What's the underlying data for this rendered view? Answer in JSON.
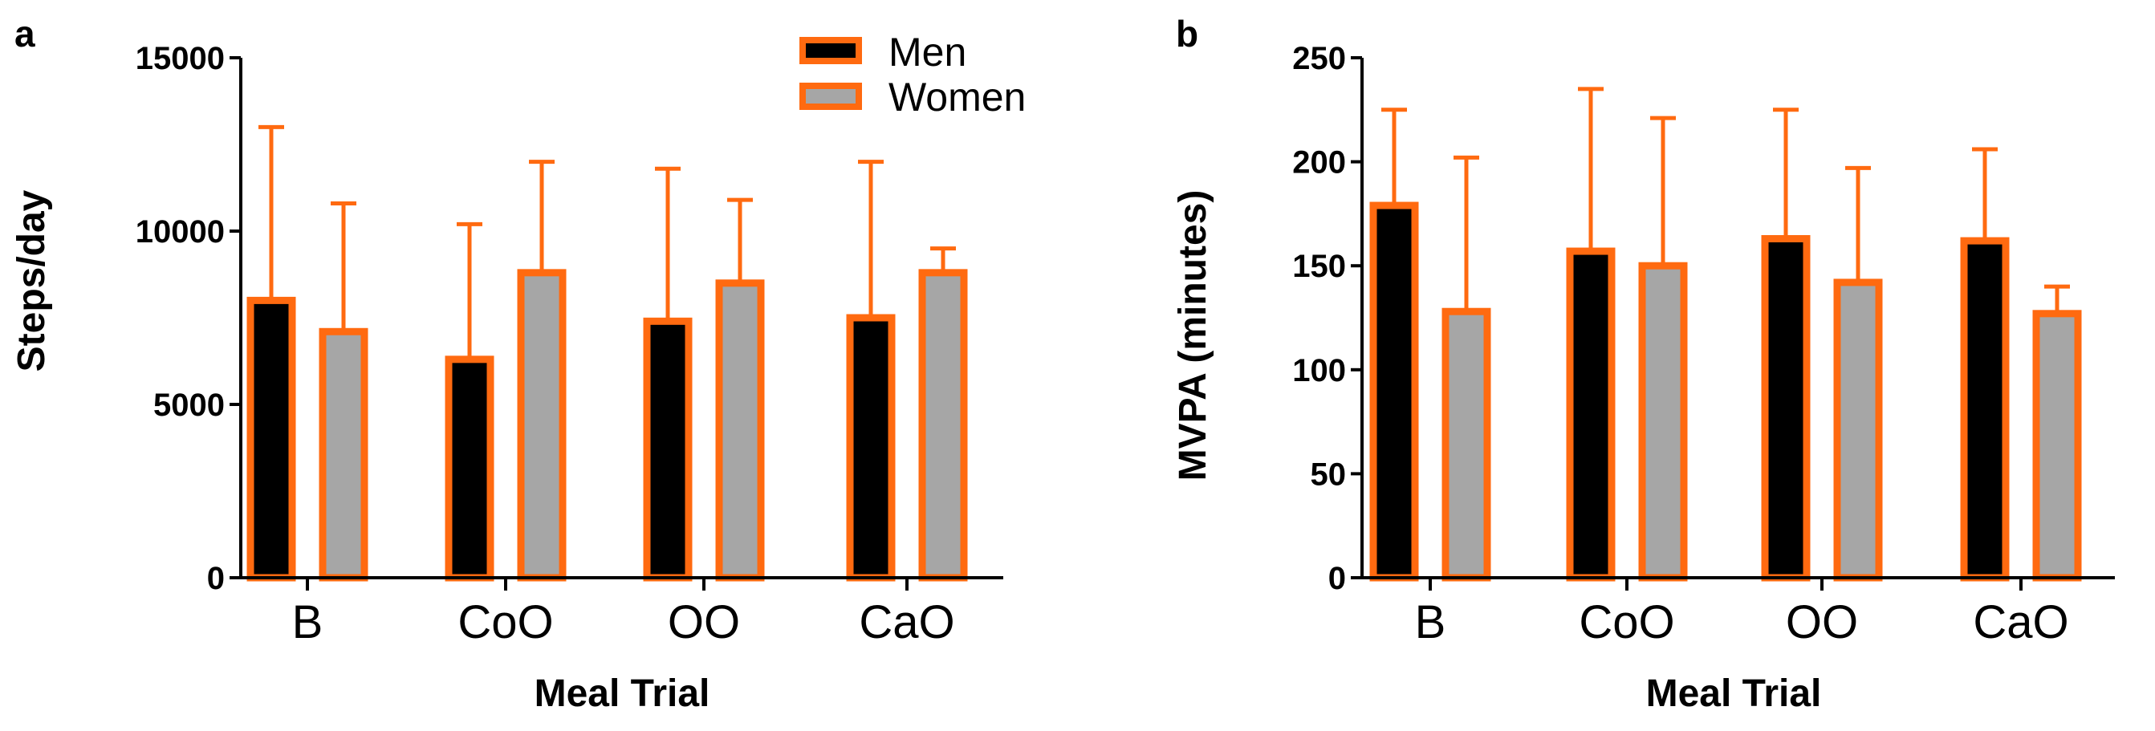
{
  "colors": {
    "men_fill": "#000000",
    "women_fill": "#a6a6a6",
    "bar_edge": "#ff6a10",
    "axis": "#000000"
  },
  "legend": {
    "items": [
      {
        "name": "Men",
        "fill": "#000000"
      },
      {
        "name": "Women",
        "fill": "#a6a6a6"
      }
    ],
    "placement": "top-right of panel a"
  },
  "chart_data": [
    {
      "panel": "a",
      "type": "bar",
      "title": "",
      "xlabel": "Meal Trial",
      "ylabel": "Steps/day",
      "categories": [
        "B",
        "CoO",
        "OO",
        "CaO"
      ],
      "ylim": [
        0,
        15000
      ],
      "yticks": [
        0,
        5000,
        10000,
        15000
      ],
      "yticklabels": [
        "0",
        "5000",
        "10000",
        "15000"
      ],
      "series": [
        {
          "name": "Men",
          "values": [
            8000,
            6300,
            7400,
            7500
          ],
          "error": [
            5000,
            3900,
            4400,
            4500
          ]
        },
        {
          "name": "Women",
          "values": [
            7100,
            8800,
            8500,
            8800
          ],
          "error": [
            3700,
            3200,
            2400,
            700
          ]
        }
      ]
    },
    {
      "panel": "b",
      "type": "bar",
      "title": "",
      "xlabel": "Meal Trial",
      "ylabel": "MVPA (minutes)",
      "categories": [
        "B",
        "CoO",
        "OO",
        "CaO"
      ],
      "ylim": [
        0,
        250
      ],
      "yticks": [
        0,
        50,
        100,
        150,
        200,
        250
      ],
      "yticklabels": [
        "0",
        "50",
        "100",
        "150",
        "200",
        "250"
      ],
      "series": [
        {
          "name": "Men",
          "values": [
            179,
            157,
            163,
            162
          ],
          "error": [
            46,
            78,
            62,
            44
          ]
        },
        {
          "name": "Women",
          "values": [
            128,
            150,
            142,
            127
          ],
          "error": [
            74,
            71,
            55,
            13
          ]
        }
      ]
    }
  ]
}
